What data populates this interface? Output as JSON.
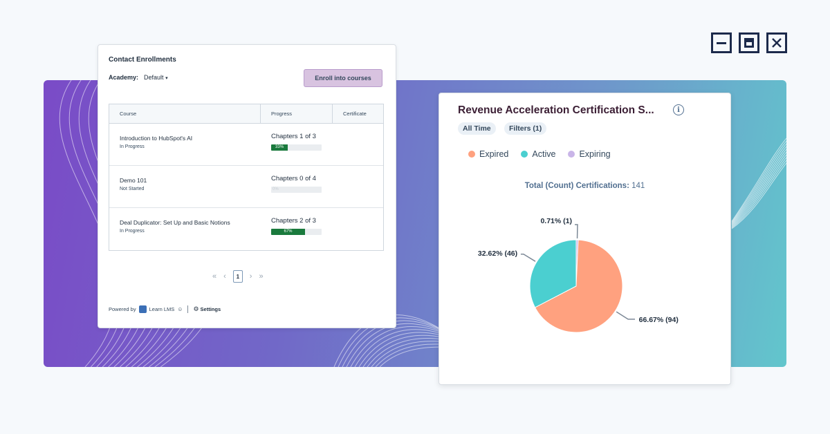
{
  "colors": {
    "expired": "#ffa17f",
    "active": "#4bcfd0",
    "expiring": "#c9b5e8",
    "progress_fill": "#1a7a3d"
  },
  "window_controls": [
    "minimize-icon",
    "maximize-icon",
    "close-icon"
  ],
  "enrollments": {
    "title": "Contact Enrollments",
    "academy_label": "Academy:",
    "academy_value": "Default",
    "enroll_button": "Enroll into courses",
    "columns": [
      "Course",
      "Progress",
      "Certificate"
    ],
    "rows": [
      {
        "name": "Introduction to HubSpot's AI",
        "status": "In Progress",
        "chapters": "Chapters 1 of 3",
        "percent": 33,
        "percent_label": "33%"
      },
      {
        "name": "Demo 101",
        "status": "Not Started",
        "chapters": "Chapters 0 of 4",
        "percent": 0,
        "percent_label": "0%"
      },
      {
        "name": "Deal Duplicator: Set Up and Basic Notions",
        "status": "In Progress",
        "chapters": "Chapters 2 of 3",
        "percent": 67,
        "percent_label": "67%"
      }
    ],
    "pagination": {
      "first": "«",
      "prev": "‹",
      "current": "1",
      "next": "›",
      "last": "»"
    },
    "footer": {
      "powered_by": "Powered by",
      "brand": "Learn LMS",
      "settings": "Settings"
    }
  },
  "certification": {
    "title": "Revenue Acceleration Certification S...",
    "filters": [
      "All Time",
      "Filters (1)"
    ],
    "legend": [
      "Expired",
      "Active",
      "Expiring"
    ],
    "total_label": "Total (Count) Certifications:",
    "total_value": "141"
  },
  "chart_data": {
    "type": "pie",
    "title": "Revenue Acceleration Certification S...",
    "slices": [
      {
        "name": "Expired",
        "value": 94,
        "label": "66.67% (94)"
      },
      {
        "name": "Active",
        "value": 46,
        "label": "32.62% (46)"
      },
      {
        "name": "Expiring",
        "value": 1,
        "label": "0.71% (1)"
      }
    ],
    "legend_position": "top-left"
  }
}
